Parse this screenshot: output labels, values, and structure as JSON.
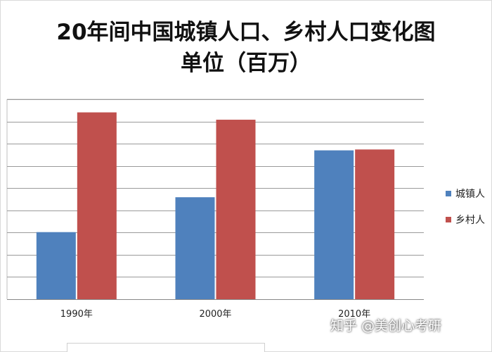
{
  "chart_data": {
    "type": "bar",
    "title_line1": "20年间中国城镇人口、乡村人口变化图",
    "title_line2": "单位（百万）",
    "categories": [
      "1990年",
      "2000年",
      "2010年"
    ],
    "series": [
      {
        "name": "城镇人",
        "values": [
          302,
          459,
          670
        ],
        "color": "#4f81bd"
      },
      {
        "name": "乡村人",
        "values": [
          841,
          808,
          674
        ],
        "color": "#c0504d"
      }
    ],
    "ylim": [
      0,
      900
    ],
    "grid": true,
    "legend": "right"
  },
  "watermark": "知乎 @美创心考研"
}
